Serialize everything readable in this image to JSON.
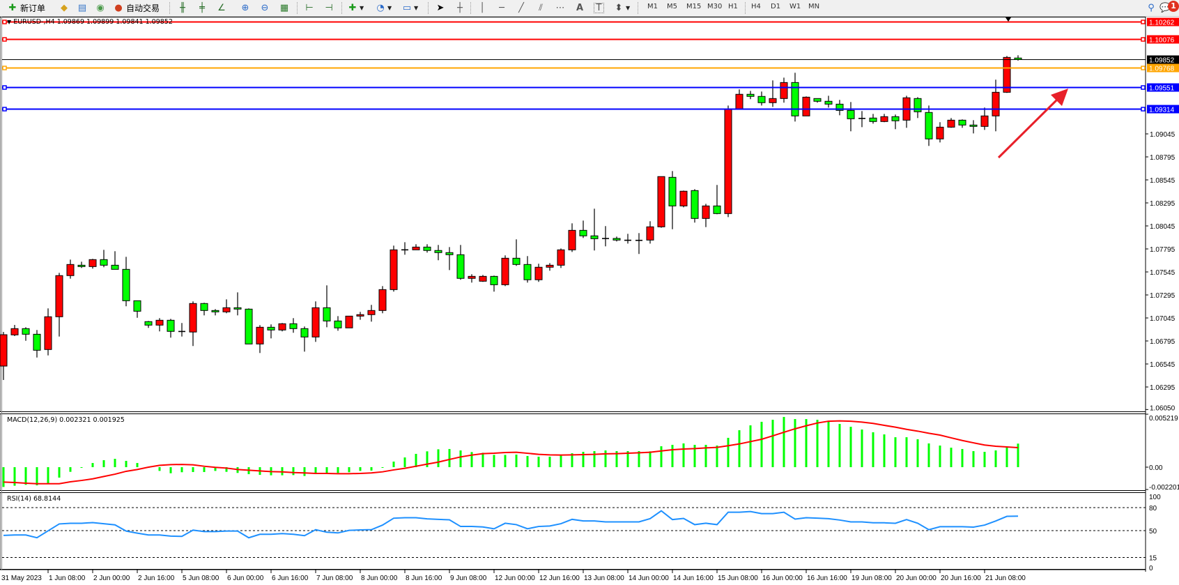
{
  "toolbar": {
    "new_order": "新订单",
    "auto_trading": "自动交易",
    "timeframes": [
      "M1",
      "M5",
      "M15",
      "M30",
      "H1",
      "H4",
      "D1",
      "W1",
      "MN"
    ],
    "notification_count": "1",
    "icons": [
      "new-order-icon",
      "market-watch-folder-icon",
      "terminal-icon",
      "signals-icon",
      "auto-trading-icon",
      "bar-chart-icon",
      "candlestick-icon",
      "line-chart-icon",
      "zoom-in-icon",
      "zoom-out-icon",
      "tile-windows-icon",
      "chart-shift-icon",
      "auto-scroll-icon",
      "indicators-icon",
      "periods-clock-icon",
      "templates-icon",
      "cursor-icon",
      "crosshair-icon",
      "vertical-line-icon",
      "horizontal-line-icon",
      "trendline-icon",
      "equidistant-channel-icon",
      "fibonacci-icon",
      "text-icon",
      "text-label-icon",
      "arrows-icon",
      "search-icon",
      "chat-icon"
    ]
  },
  "chart": {
    "symbol_line": "EURUSD-,H4  1.09869 1.09899 1.09841 1.09852",
    "colors": {
      "bull": "#ff0000",
      "bear": "#00ff00",
      "macd_hist": "#00ff00",
      "signal": "#ff0000",
      "rsi": "#1e90ff"
    },
    "price_axis": [
      "1.09045",
      "1.08795",
      "1.08545",
      "1.08295",
      "1.08045",
      "1.07795",
      "1.07545",
      "1.07295",
      "1.07045",
      "1.06795",
      "1.06545",
      "1.06295",
      "1.06050"
    ],
    "hlines": [
      {
        "price": "1.10262",
        "color": "#ff0000"
      },
      {
        "price": "1.10076",
        "color": "#ff0000"
      },
      {
        "price": "1.09852",
        "color": "#000000"
      },
      {
        "price": "1.09768",
        "color": "#ffa500"
      },
      {
        "price": "1.09551",
        "color": "#0000ff"
      },
      {
        "price": "1.09314",
        "color": "#0000ff"
      }
    ],
    "time_axis": [
      "31 May 2023",
      "1 Jun 08:00",
      "2 Jun 00:00",
      "2 Jun 16:00",
      "5 Jun 08:00",
      "6 Jun 00:00",
      "6 Jun 16:00",
      "7 Jun 08:00",
      "8 Jun 00:00",
      "8 Jun 16:00",
      "9 Jun 08:00",
      "12 Jun 00:00",
      "12 Jun 16:00",
      "13 Jun 08:00",
      "14 Jun 00:00",
      "14 Jun 16:00",
      "15 Jun 08:00",
      "16 Jun 00:00",
      "16 Jun 16:00",
      "19 Jun 08:00",
      "20 Jun 00:00",
      "20 Jun 16:00",
      "21 Jun 08:00"
    ],
    "annotation": "red-arrow-up-right"
  },
  "macd": {
    "label": "MACD(12,26,9) 0.002321 0.001925",
    "axis": [
      "0.005219",
      "0.00",
      "-0.002201"
    ]
  },
  "rsi": {
    "label": "RSI(14) 68.8144",
    "axis": [
      "100",
      "80",
      "50",
      "15",
      "0"
    ]
  },
  "chart_data": {
    "type": "candlestick",
    "ohlc": [
      [
        1.06522,
        1.06893,
        1.06371,
        1.06863
      ],
      [
        1.06861,
        1.06969,
        1.06848,
        1.06929
      ],
      [
        1.06929,
        1.06944,
        1.06797,
        1.06868
      ],
      [
        1.06868,
        1.06914,
        1.06615,
        1.06694
      ],
      [
        1.06702,
        1.07149,
        1.06638,
        1.07058
      ],
      [
        1.07058,
        1.07535,
        1.06843,
        1.07505
      ],
      [
        1.07505,
        1.07679,
        1.07472,
        1.07626
      ],
      [
        1.07618,
        1.07656,
        1.07588,
        1.07603
      ],
      [
        1.07603,
        1.07687,
        1.07581,
        1.07679
      ],
      [
        1.07679,
        1.07785,
        1.07596,
        1.07618
      ],
      [
        1.07618,
        1.0777,
        1.07573,
        1.07573
      ],
      [
        1.07573,
        1.07709,
        1.07172,
        1.07232
      ],
      [
        1.07232,
        1.07232,
        1.07047,
        1.07118
      ],
      [
        1.07005,
        1.07012,
        1.06937,
        1.06967
      ],
      [
        1.06967,
        1.07043,
        1.06899,
        1.0702
      ],
      [
        1.0702,
        1.07035,
        1.06831,
        1.06899
      ],
      [
        1.06898,
        1.0699,
        1.06843,
        1.06895
      ],
      [
        1.06892,
        1.07225,
        1.0674,
        1.07202
      ],
      [
        1.07202,
        1.0721,
        1.07073,
        1.07126
      ],
      [
        1.07126,
        1.07141,
        1.07073,
        1.07111
      ],
      [
        1.07111,
        1.07247,
        1.07096,
        1.07156
      ],
      [
        1.07156,
        1.07323,
        1.07073,
        1.07141
      ],
      [
        1.07141,
        1.07149,
        1.06762,
        1.06762
      ],
      [
        1.06762,
        1.06967,
        1.06664,
        1.06944
      ],
      [
        1.06944,
        1.06975,
        1.06823,
        1.06914
      ],
      [
        1.06914,
        1.0699,
        1.06899,
        1.06982
      ],
      [
        1.06982,
        1.07043,
        1.06884,
        1.06929
      ],
      [
        1.06929,
        1.06952,
        1.06679,
        1.06838
      ],
      [
        1.06838,
        1.07225,
        1.06785,
        1.07156
      ],
      [
        1.07156,
        1.07399,
        1.06944,
        1.07012
      ],
      [
        1.07012,
        1.07065,
        1.06906,
        1.06937
      ],
      [
        1.06937,
        1.07065,
        1.06937,
        1.07065
      ],
      [
        1.07065,
        1.07111,
        1.07025,
        1.07081
      ],
      [
        1.07081,
        1.07187,
        1.07005,
        1.07126
      ],
      [
        1.07126,
        1.07391,
        1.07096,
        1.07353
      ],
      [
        1.07353,
        1.07831,
        1.07331,
        1.07785
      ],
      [
        1.07785,
        1.07868,
        1.07732,
        1.07783
      ],
      [
        1.07785,
        1.07846,
        1.07785,
        1.07815
      ],
      [
        1.07815,
        1.07846,
        1.07755,
        1.07778
      ],
      [
        1.07778,
        1.07838,
        1.07672,
        1.07755
      ],
      [
        1.07755,
        1.07815,
        1.07565,
        1.07732
      ],
      [
        1.07732,
        1.07838,
        1.0746,
        1.07475
      ],
      [
        1.07475,
        1.0752,
        1.07429,
        1.07497
      ],
      [
        1.07444,
        1.07512,
        1.07437,
        1.07497
      ],
      [
        1.07497,
        1.07505,
        1.07331,
        1.07406
      ],
      [
        1.07406,
        1.07725,
        1.07391,
        1.07694
      ],
      [
        1.07694,
        1.07899,
        1.07611,
        1.07626
      ],
      [
        1.07626,
        1.07717,
        1.07429,
        1.0746
      ],
      [
        1.0746,
        1.07634,
        1.07437,
        1.07596
      ],
      [
        1.07596,
        1.07641,
        1.07558,
        1.07618
      ],
      [
        1.07618,
        1.078,
        1.07588,
        1.07785
      ],
      [
        1.07785,
        1.08073,
        1.07762,
        1.07997
      ],
      [
        1.07997,
        1.08103,
        1.07914,
        1.07937
      ],
      [
        1.07937,
        1.08232,
        1.07778,
        1.07906
      ],
      [
        1.07908,
        1.08043,
        1.07823,
        1.07905
      ],
      [
        1.07909,
        1.07929,
        1.07876,
        1.07891
      ],
      [
        1.07889,
        1.07959,
        1.07853,
        1.07887
      ],
      [
        1.07888,
        1.07967,
        1.0774,
        1.07886
      ],
      [
        1.07891,
        1.08096,
        1.07853,
        1.08035
      ],
      [
        1.08035,
        1.08581,
        1.08025,
        1.08581
      ],
      [
        1.08573,
        1.08641,
        1.08009,
        1.08262
      ],
      [
        1.08262,
        1.08429,
        1.08247,
        1.08422
      ],
      [
        1.08429,
        1.08444,
        1.08081,
        1.08126
      ],
      [
        1.08126,
        1.08285,
        1.08032,
        1.08262
      ],
      [
        1.08262,
        1.0849,
        1.08172,
        1.08179
      ],
      [
        1.08179,
        1.09353,
        1.08141,
        1.09315
      ],
      [
        1.09315,
        1.09528,
        1.09315,
        1.09475
      ],
      [
        1.09475,
        1.09512,
        1.09422,
        1.09452
      ],
      [
        1.09452,
        1.09505,
        1.09353,
        1.09384
      ],
      [
        1.09384,
        1.09626,
        1.09338,
        1.09429
      ],
      [
        1.09429,
        1.09656,
        1.09384,
        1.09603
      ],
      [
        1.09603,
        1.09709,
        1.09179,
        1.0924
      ],
      [
        1.0924,
        1.09452,
        1.0924,
        1.09444
      ],
      [
        1.09429,
        1.09429,
        1.09384,
        1.09399
      ],
      [
        1.09399,
        1.09459,
        1.09331,
        1.09368
      ],
      [
        1.09368,
        1.09414,
        1.09247,
        1.093
      ],
      [
        1.093,
        1.09391,
        1.09073,
        1.09209
      ],
      [
        1.09213,
        1.09293,
        1.09118,
        1.09211
      ],
      [
        1.09217,
        1.09262,
        1.09156,
        1.09179
      ],
      [
        1.09179,
        1.09262,
        1.09172,
        1.09232
      ],
      [
        1.09232,
        1.09255,
        1.09096,
        1.09187
      ],
      [
        1.09194,
        1.09459,
        1.09111,
        1.09437
      ],
      [
        1.09429,
        1.09444,
        1.09217,
        1.09285
      ],
      [
        1.09278,
        1.09353,
        1.08914,
        1.0899
      ],
      [
        1.0899,
        1.09172,
        1.08952,
        1.09118
      ],
      [
        1.09118,
        1.09217,
        1.09111,
        1.09194
      ],
      [
        1.09194,
        1.09202,
        1.09111,
        1.09141
      ],
      [
        1.09141,
        1.09194,
        1.0905,
        1.09126
      ],
      [
        1.09126,
        1.09331,
        1.09088,
        1.0924
      ],
      [
        1.0924,
        1.09634,
        1.09073,
        1.09497
      ],
      [
        1.09497,
        1.09891,
        1.0949,
        1.09876
      ],
      [
        1.09869,
        1.09899,
        1.09841,
        1.09852
      ]
    ],
    "price_range": [
      1.0605,
      1.10262
    ],
    "macd_hist": [
      -0.00195,
      -0.00183,
      -0.00174,
      -0.00179,
      -0.0016,
      -0.00103,
      -0.00046,
      -5e-05,
      0.00041,
      0.00069,
      0.00082,
      0.00062,
      0.00041,
      -7e-05,
      -0.00037,
      -0.0006,
      -0.0005,
      -0.00048,
      -0.00048,
      -0.00037,
      -0.00046,
      -0.00057,
      -0.00069,
      -0.00076,
      -0.0008,
      -0.0008,
      -0.00078,
      -0.00087,
      -0.00069,
      -0.0006,
      -0.00057,
      -0.0005,
      -0.00037,
      -0.00034,
      -5e-05,
      0.00055,
      0.00096,
      0.00131,
      0.00156,
      0.00176,
      0.00179,
      0.00165,
      0.00149,
      0.00142,
      0.00121,
      0.00121,
      0.00124,
      0.0011,
      0.00103,
      0.00103,
      0.00119,
      0.00137,
      0.00151,
      0.00158,
      0.00165,
      0.00158,
      0.00158,
      0.00158,
      0.00156,
      0.00206,
      0.0022,
      0.00234,
      0.0022,
      0.0022,
      0.00213,
      0.00289,
      0.00364,
      0.00412,
      0.00447,
      0.00467,
      0.00495,
      0.00474,
      0.00474,
      0.00467,
      0.00447,
      0.00426,
      0.00398,
      0.00371,
      0.00344,
      0.00323,
      0.00295,
      0.00295,
      0.00275,
      0.00234,
      0.00213,
      0.00192,
      0.00179,
      0.00158,
      0.00151,
      0.00165,
      0.00199,
      0.002321
    ],
    "macd_signal": [
      -0.00147,
      -0.00151,
      -0.00158,
      -0.00163,
      -0.00163,
      -0.00163,
      -0.00144,
      -0.00131,
      -0.00115,
      -0.00092,
      -0.00069,
      -0.00041,
      -0.00023,
      0,
      0.00018,
      0.00025,
      0.00027,
      0.00023,
      9e-05,
      -2e-05,
      -9e-05,
      -0.00023,
      -0.0003,
      -0.00037,
      -0.00044,
      -0.00046,
      -0.00053,
      -0.00057,
      -0.00062,
      -0.00062,
      -0.00064,
      -0.00064,
      -0.00062,
      -0.00057,
      -0.00046,
      -0.00027,
      -0.00011,
      9e-05,
      0.0003,
      0.0005,
      0.00076,
      0.00101,
      0.00119,
      0.00133,
      0.00137,
      0.00144,
      0.00147,
      0.00137,
      0.00126,
      0.00121,
      0.00119,
      0.00121,
      0.00124,
      0.00126,
      0.00131,
      0.00133,
      0.00137,
      0.00142,
      0.00147,
      0.0016,
      0.00172,
      0.00179,
      0.00183,
      0.0019,
      0.00195,
      0.00211,
      0.00229,
      0.00252,
      0.00275,
      0.00309,
      0.00344,
      0.00378,
      0.00408,
      0.00435,
      0.00453,
      0.00456,
      0.00453,
      0.00444,
      0.00431,
      0.00412,
      0.00394,
      0.00373,
      0.00355,
      0.00334,
      0.00316,
      0.00289,
      0.00263,
      0.0024,
      0.00218,
      0.00206,
      0.00199,
      0.001925
    ],
    "macd_range": [
      -0.002201,
      0.005219
    ],
    "rsi": [
      43.7,
      44.3,
      44.3,
      40.7,
      49.7,
      58.7,
      59.6,
      59.6,
      60.5,
      59.0,
      57.5,
      49.4,
      46.7,
      44.3,
      44.3,
      42.8,
      42.5,
      50.6,
      48.8,
      48.8,
      49.4,
      49.4,
      40.7,
      45.2,
      45.2,
      46.1,
      45.2,
      43.4,
      51.2,
      47.9,
      47.0,
      50.3,
      50.9,
      51.2,
      57.2,
      66.2,
      66.8,
      66.8,
      65.3,
      64.7,
      64.1,
      55.4,
      55.4,
      54.8,
      52.4,
      59.6,
      57.8,
      52.4,
      55.4,
      56.0,
      59.0,
      64.7,
      62.6,
      62.6,
      61.4,
      61.4,
      61.4,
      61.4,
      65.6,
      75.8,
      64.4,
      65.9,
      57.8,
      59.6,
      57.8,
      74.0,
      74.0,
      74.9,
      72.2,
      72.2,
      74.0,
      65.0,
      66.8,
      66.2,
      65.6,
      63.8,
      61.4,
      61.4,
      60.2,
      60.2,
      59.6,
      64.4,
      59.6,
      51.2,
      55.1,
      55.1,
      55.1,
      54.5,
      57.2,
      62.6,
      68.6,
      68.8144
    ],
    "rsi_levels": [
      80,
      50,
      15
    ],
    "rsi_range": [
      0,
      100
    ]
  }
}
